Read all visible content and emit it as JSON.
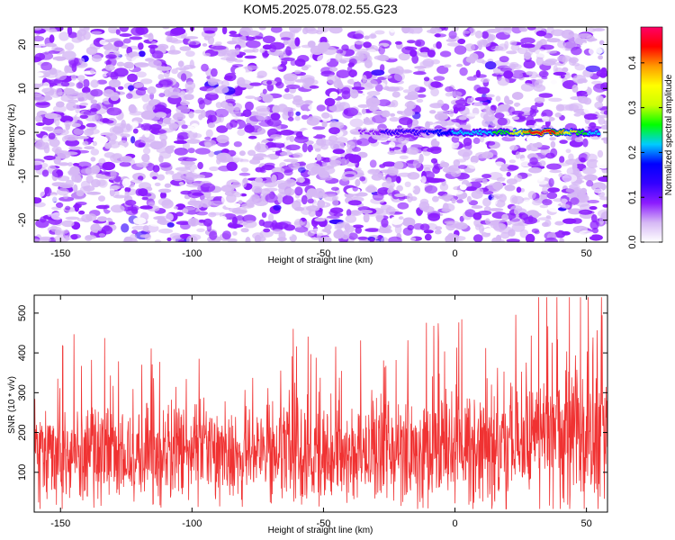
{
  "title": "KOM5.2025.078.02.55.G23",
  "chart_data": [
    {
      "type": "heatmap",
      "xlabel": "Height of straight line (km)",
      "ylabel": "Frequency (Hz)",
      "xlim": [
        -160,
        58
      ],
      "ylim": [
        -25,
        24
      ],
      "xticks": [
        -150,
        -100,
        -50,
        0,
        50
      ],
      "yticks": [
        -20,
        -10,
        0,
        10,
        20
      ],
      "colorbar": {
        "label": "Normalized spectral amplitude",
        "range": [
          0,
          0.48
        ],
        "ticks": [
          "0.0",
          "0.1",
          "0.2",
          "0.3",
          "0.4"
        ],
        "colors": [
          "#ffffff",
          "#d6b8f5",
          "#8c1cff",
          "#3300ff",
          "#0000ff",
          "#00ccff",
          "#00ff00",
          "#ccff00",
          "#ffff00",
          "#ff9900",
          "#ff0000",
          "#ff0066"
        ]
      },
      "background_noise_level": 0.05,
      "signal_track": {
        "freq_hz": 0,
        "x": [
          -36,
          -30,
          -25,
          -20,
          -15,
          -10,
          -5,
          0,
          5,
          10,
          15,
          20,
          25,
          30,
          35,
          40,
          45,
          50,
          55
        ],
        "amplitude": [
          0.08,
          0.1,
          0.12,
          0.13,
          0.14,
          0.16,
          0.18,
          0.2,
          0.22,
          0.23,
          0.24,
          0.26,
          0.35,
          0.44,
          0.46,
          0.4,
          0.3,
          0.25,
          0.2
        ]
      },
      "grid": false
    },
    {
      "type": "line",
      "xlabel": "Height of straight line (km)",
      "ylabel": "SNR (10 * v/v)",
      "xlim": [
        -160,
        58
      ],
      "ylim": [
        0,
        545
      ],
      "xticks": [
        -150,
        -100,
        -50,
        0,
        50
      ],
      "yticks": [
        100,
        200,
        300,
        400,
        500
      ],
      "color": "#f03232",
      "series": [
        {
          "x_range": [
            -160,
            58
          ],
          "baseline_x": [
            -160,
            -100,
            -50,
            0,
            20,
            40,
            58
          ],
          "baseline_y": [
            150,
            150,
            155,
            160,
            170,
            185,
            190
          ],
          "spread": [
            [
              -160,
              120
            ],
            [
              -100,
              120
            ],
            [
              -50,
              125
            ],
            [
              0,
              130
            ],
            [
              20,
              160
            ],
            [
              40,
              180
            ],
            [
              58,
              190
            ]
          ]
        }
      ],
      "grid": false
    }
  ]
}
